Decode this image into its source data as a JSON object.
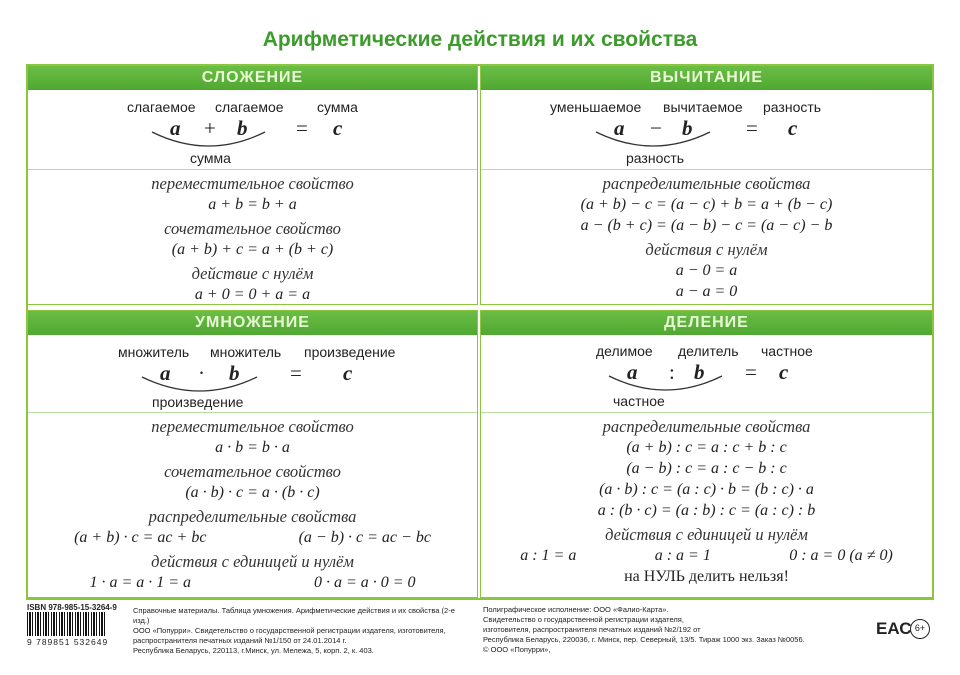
{
  "title": "Арифметические действия и их свойства",
  "addition": {
    "header": "СЛОЖЕНИЕ",
    "labels": [
      "слагаемое",
      "слагаемое",
      "сумма"
    ],
    "vars": [
      "a",
      "+",
      "b",
      "=",
      "c"
    ],
    "under": "сумма",
    "props": [
      {
        "h": "переместительное свойство",
        "f": [
          "a + b = b + a"
        ]
      },
      {
        "h": "сочетательное свойство",
        "f": [
          "(a + b) + c = a + (b + c)"
        ]
      },
      {
        "h": "действие с нулём",
        "f": [
          "a + 0 = 0 + a = a"
        ]
      }
    ]
  },
  "subtraction": {
    "header": "ВЫЧИТАНИЕ",
    "labels": [
      "уменьшаемое",
      "вычитаемое",
      "разность"
    ],
    "vars": [
      "a",
      "−",
      "b",
      "=",
      "c"
    ],
    "under": "разность",
    "props": [
      {
        "h": "распределительные свойства",
        "f": [
          "(a + b) − c = (a − c) + b = a + (b − c)",
          "a − (b + c) = (a − b) − c = (a − c) − b"
        ]
      },
      {
        "h": "действия с нулём",
        "f": [
          "a − 0 = a",
          "a − a = 0"
        ]
      }
    ]
  },
  "multiplication": {
    "header": "УМНОЖЕНИЕ",
    "labels": [
      "множитель",
      "множитель",
      "произведение"
    ],
    "vars": [
      "a",
      "·",
      "b",
      "=",
      "c"
    ],
    "under": "произведение",
    "props": [
      {
        "h": "переместительное свойство",
        "f": [
          "a · b = b · a"
        ]
      },
      {
        "h": "сочетательное свойство",
        "f": [
          "(a · b) · c = a · (b · c)"
        ]
      }
    ],
    "distributive": {
      "h": "распределительные свойства",
      "row": [
        "(a + b) · c = ac + bc",
        "(a − b) · c = ac − bc"
      ]
    },
    "unit": {
      "h": "действия с единицей и нулём",
      "row": [
        "1 · a = a · 1 = a",
        "0 · a = a · 0 = 0"
      ]
    }
  },
  "division": {
    "header": "ДЕЛЕНИЕ",
    "labels": [
      "делимое",
      "делитель",
      "частное"
    ],
    "vars": [
      "a",
      ":",
      "b",
      "=",
      "c"
    ],
    "under": "частное",
    "props": [
      {
        "h": "распределительные свойства",
        "f": [
          "(a + b) : c = a : c + b : c",
          "(a − b) : c = a : c − b : c",
          "(a · b) : c = (a : c) · b = (b : c) · a",
          "a : (b · c) = (a : b) : c = (a : c) : b"
        ]
      }
    ],
    "unit": {
      "h": "действия с единицей и нулём",
      "row": [
        "a : 1 = a",
        "a : a = 1",
        "0 : a = 0 (a ≠ 0)"
      ]
    },
    "warning": "на НУЛЬ делить нельзя!"
  },
  "footer": {
    "isbn": "ISBN 978-985-15-3264-9",
    "barcode_digits": "9 789851 532649",
    "left": [
      "Справочные материалы. Таблица умножения. Арифметические действия и их свойства (2-е изд.)",
      "ООО «Попурри». Свидетельство о государственной регистрации издателя, изготовителя,",
      "распространителя печатных изданий №1/150 от 24.01.2014 г.",
      "Республика Беларусь, 220113, г.Минск, ул. Мележа, 5, корп. 2, к. 403."
    ],
    "eac": "ЕАС",
    "age": "6+",
    "right": [
      "Полиграфическое исполнение: ООО «Фалио-Карта».",
      "Свидетельство о государственной регистрации издателя,",
      "изготовителя, распространителя печатных изданий №2/192 от",
      "Республика Беларусь, 220036, г. Минск, пер. Северный, 13/5. Тираж 1000 экз. Заказ №0056.",
      "© ООО «Попурри»,"
    ]
  },
  "colors": {
    "header_green": "#5db33a",
    "border_green": "#8cc63f",
    "title_green": "#3d9a2c"
  }
}
